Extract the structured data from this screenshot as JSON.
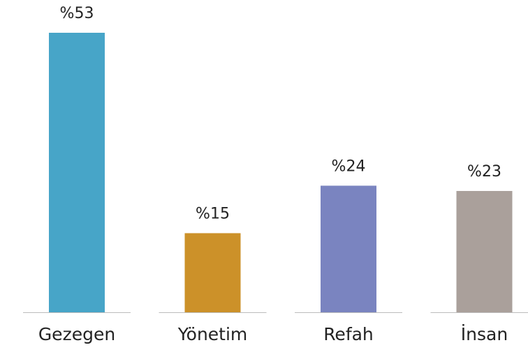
{
  "chart_data": {
    "type": "bar",
    "categories": [
      "Gezegen",
      "Yönetim",
      "Refah",
      "İnsan"
    ],
    "values": [
      53,
      15,
      24,
      23
    ],
    "value_labels": [
      "%53",
      "%15",
      "%24",
      "%23"
    ],
    "colors": [
      "#47a5c8",
      "#cc9129",
      "#7a84c0",
      "#aaa09b"
    ]
  }
}
